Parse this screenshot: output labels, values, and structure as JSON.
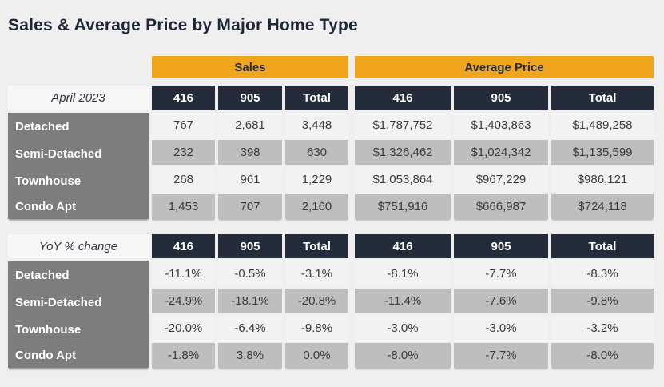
{
  "page": {
    "title": "Sales & Average Price by Major Home Type"
  },
  "colors": {
    "bg": "#EFEFEF",
    "orange": "#F0A51F",
    "navy": "#242B3B",
    "labelgray": "#7D7D7D",
    "rowlight": "#F2F2F2",
    "rowalt": "#BEBEBE",
    "headercell": "#F7F7F7",
    "textdark": "#3B3B3B",
    "title": "#1E2638",
    "white": "#FFFFFF"
  },
  "table": {
    "groups": [
      {
        "label": "Sales"
      },
      {
        "label": "Average Price"
      }
    ],
    "sections": [
      {
        "row_header_label": "April 2023",
        "col_headers": [
          "416",
          "905",
          "Total",
          "416",
          "905",
          "Total"
        ],
        "rows": [
          {
            "label": "Detached",
            "values": [
              "767",
              "2,681",
              "3,448",
              "$1,787,752",
              "$1,403,863",
              "$1,489,258"
            ]
          },
          {
            "label": "Semi-Detached",
            "values": [
              "232",
              "398",
              "630",
              "$1,326,462",
              "$1,024,342",
              "$1,135,599"
            ]
          },
          {
            "label": "Townhouse",
            "values": [
              "268",
              "961",
              "1,229",
              "$1,053,864",
              "$967,229",
              "$986,121"
            ]
          },
          {
            "label": "Condo Apt",
            "values": [
              "1,453",
              "707",
              "2,160",
              "$751,916",
              "$666,987",
              "$724,118"
            ]
          }
        ]
      },
      {
        "row_header_label": "YoY % change",
        "col_headers": [
          "416",
          "905",
          "Total",
          "416",
          "905",
          "Total"
        ],
        "rows": [
          {
            "label": "Detached",
            "values": [
              "-11.1%",
              "-0.5%",
              "-3.1%",
              "-8.1%",
              "-7.7%",
              "-8.3%"
            ]
          },
          {
            "label": "Semi-Detached",
            "values": [
              "-24.9%",
              "-18.1%",
              "-20.8%",
              "-11.4%",
              "-7.6%",
              "-9.8%"
            ]
          },
          {
            "label": "Townhouse",
            "values": [
              "-20.0%",
              "-6.4%",
              "-9.8%",
              "-3.0%",
              "-3.0%",
              "-3.2%"
            ]
          },
          {
            "label": "Condo Apt",
            "values": [
              "-1.8%",
              "3.8%",
              "0.0%",
              "-8.0%",
              "-7.7%",
              "-8.0%"
            ]
          }
        ]
      }
    ]
  },
  "chart_data": {
    "type": "table",
    "title": "Sales & Average Price by Major Home Type",
    "column_groups": [
      "Sales",
      "Average Price"
    ],
    "columns": [
      "416",
      "905",
      "Total"
    ],
    "sections": [
      {
        "name": "April 2023",
        "rows": [
          {
            "label": "Detached",
            "sales": {
              "416": 767,
              "905": 2681,
              "total": 3448
            },
            "average_price": {
              "416": 1787752,
              "905": 1403863,
              "total": 1489258
            }
          },
          {
            "label": "Semi-Detached",
            "sales": {
              "416": 232,
              "905": 398,
              "total": 630
            },
            "average_price": {
              "416": 1326462,
              "905": 1024342,
              "total": 1135599
            }
          },
          {
            "label": "Townhouse",
            "sales": {
              "416": 268,
              "905": 961,
              "total": 1229
            },
            "average_price": {
              "416": 1053864,
              "905": 967229,
              "total": 986121
            }
          },
          {
            "label": "Condo Apt",
            "sales": {
              "416": 1453,
              "905": 707,
              "total": 2160
            },
            "average_price": {
              "416": 751916,
              "905": 666987,
              "total": 724118
            }
          }
        ]
      },
      {
        "name": "YoY % change",
        "rows": [
          {
            "label": "Detached",
            "sales": {
              "416": -11.1,
              "905": -0.5,
              "total": -3.1
            },
            "average_price": {
              "416": -8.1,
              "905": -7.7,
              "total": -8.3
            }
          },
          {
            "label": "Semi-Detached",
            "sales": {
              "416": -24.9,
              "905": -18.1,
              "total": -20.8
            },
            "average_price": {
              "416": -11.4,
              "905": -7.6,
              "total": -9.8
            }
          },
          {
            "label": "Townhouse",
            "sales": {
              "416": -20.0,
              "905": -6.4,
              "total": -9.8
            },
            "average_price": {
              "416": -3.0,
              "905": -3.0,
              "total": -3.2
            }
          },
          {
            "label": "Condo Apt",
            "sales": {
              "416": -1.8,
              "905": 3.8,
              "total": 0.0
            },
            "average_price": {
              "416": -8.0,
              "905": -7.7,
              "total": -8.0
            }
          }
        ]
      }
    ]
  }
}
